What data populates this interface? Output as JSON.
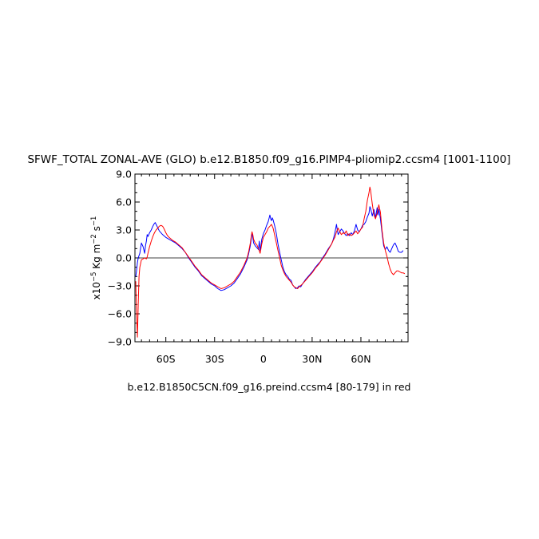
{
  "chart_data": {
    "type": "line",
    "title": "SFWF_TOTAL ZONAL-AVE (GLO) b.e12.B1850.f09_g16.PIMP4-pliomip2.ccsm4 [1001-1100]",
    "xlabel": "b.e12.B1850C5CN.f09_g16.preind.ccsm4 [80-179] in red",
    "ylabel": {
      "prefix": "x10",
      "exp": "−5",
      "units_a": " Kg m",
      "units_a_exp": "−2",
      "units_b": " s",
      "units_b_exp": "−1"
    },
    "xlim": [
      -79,
      89
    ],
    "ylim": [
      -9.0,
      9.0
    ],
    "x_ticks": [
      {
        "value": -60,
        "label": "60S"
      },
      {
        "value": -30,
        "label": "30S"
      },
      {
        "value": 0,
        "label": "0"
      },
      {
        "value": 30,
        "label": "30N"
      },
      {
        "value": 60,
        "label": "60N"
      }
    ],
    "y_ticks": [
      {
        "value": 9,
        "label": "9.0"
      },
      {
        "value": 6,
        "label": "6.0"
      },
      {
        "value": 3,
        "label": "3.0"
      },
      {
        "value": 0,
        "label": "0.0"
      },
      {
        "value": -3,
        "label": "−3.0"
      },
      {
        "value": -6,
        "label": "−6.0"
      },
      {
        "value": -9,
        "label": "−9.0"
      }
    ],
    "zero_line": true,
    "grid": false,
    "series": [
      {
        "color": "#0000ff",
        "points": [
          [
            -78.5,
            -2.0
          ],
          [
            -78.0,
            -1.4
          ],
          [
            -77.5,
            -0.5
          ],
          [
            -77.0,
            0.0
          ],
          [
            -76.0,
            0.5
          ],
          [
            -75.0,
            1.6
          ],
          [
            -74.0,
            1.2
          ],
          [
            -73.0,
            0.5
          ],
          [
            -72.5,
            1.3
          ],
          [
            -72.0,
            1.8
          ],
          [
            -71.5,
            2.5
          ],
          [
            -71.0,
            2.3
          ],
          [
            -70.0,
            2.7
          ],
          [
            -69.0,
            3.0
          ],
          [
            -68.0,
            3.4
          ],
          [
            -67.0,
            3.7
          ],
          [
            -66.5,
            3.8
          ],
          [
            -66.0,
            3.6
          ],
          [
            -64.0,
            2.9
          ],
          [
            -62.0,
            2.5
          ],
          [
            -60.0,
            2.2
          ],
          [
            -58.0,
            2.0
          ],
          [
            -56.0,
            1.8
          ],
          [
            -54.0,
            1.6
          ],
          [
            -52.0,
            1.3
          ],
          [
            -50.0,
            1.0
          ],
          [
            -48.0,
            0.6
          ],
          [
            -46.0,
            0.0
          ],
          [
            -44.0,
            -0.5
          ],
          [
            -42.0,
            -1.0
          ],
          [
            -40.0,
            -1.4
          ],
          [
            -38.0,
            -1.9
          ],
          [
            -36.0,
            -2.2
          ],
          [
            -34.0,
            -2.5
          ],
          [
            -32.0,
            -2.8
          ],
          [
            -30.0,
            -3.0
          ],
          [
            -28.0,
            -3.3
          ],
          [
            -26.0,
            -3.5
          ],
          [
            -24.0,
            -3.4
          ],
          [
            -22.0,
            -3.2
          ],
          [
            -20.0,
            -3.0
          ],
          [
            -18.0,
            -2.7
          ],
          [
            -16.0,
            -2.2
          ],
          [
            -14.0,
            -1.7
          ],
          [
            -12.0,
            -1.0
          ],
          [
            -10.0,
            -0.2
          ],
          [
            -9.0,
            0.5
          ],
          [
            -8.0,
            1.3
          ],
          [
            -7.5,
            2.0
          ],
          [
            -7.0,
            2.7
          ],
          [
            -6.5,
            2.2
          ],
          [
            -6.0,
            1.6
          ],
          [
            -5.0,
            1.3
          ],
          [
            -4.0,
            1.1
          ],
          [
            -3.0,
            0.9
          ],
          [
            -2.5,
            1.8
          ],
          [
            -2.0,
            0.8
          ],
          [
            -1.5,
            1.3
          ],
          [
            -1.0,
            2.0
          ],
          [
            0.0,
            2.6
          ],
          [
            1.0,
            3.0
          ],
          [
            2.0,
            3.5
          ],
          [
            3.0,
            3.9
          ],
          [
            4.0,
            4.6
          ],
          [
            4.5,
            4.2
          ],
          [
            5.0,
            4.0
          ],
          [
            5.5,
            4.3
          ],
          [
            6.0,
            4.1
          ],
          [
            7.0,
            3.4
          ],
          [
            8.0,
            2.6
          ],
          [
            9.0,
            1.5
          ],
          [
            10.0,
            0.6
          ],
          [
            11.0,
            -0.2
          ],
          [
            12.0,
            -1.0
          ],
          [
            13.0,
            -1.5
          ],
          [
            14.0,
            -1.8
          ],
          [
            15.0,
            -2.0
          ],
          [
            16.0,
            -2.3
          ],
          [
            17.0,
            -2.4
          ],
          [
            18.0,
            -2.9
          ],
          [
            19.0,
            -3.1
          ],
          [
            20.0,
            -3.3
          ],
          [
            21.0,
            -3.2
          ],
          [
            22.0,
            -3.0
          ],
          [
            23.0,
            -3.1
          ],
          [
            24.0,
            -2.8
          ],
          [
            26.0,
            -2.3
          ],
          [
            28.0,
            -1.9
          ],
          [
            30.0,
            -1.5
          ],
          [
            32.0,
            -1.0
          ],
          [
            34.0,
            -0.6
          ],
          [
            35.0,
            -0.4
          ],
          [
            36.0,
            -0.1
          ],
          [
            38.0,
            0.4
          ],
          [
            40.0,
            1.0
          ],
          [
            42.0,
            1.5
          ],
          [
            43.0,
            2.0
          ],
          [
            44.0,
            2.7
          ],
          [
            45.0,
            3.6
          ],
          [
            45.5,
            3.0
          ],
          [
            46.0,
            2.5
          ],
          [
            47.0,
            2.8
          ],
          [
            48.0,
            3.1
          ],
          [
            49.0,
            2.9
          ],
          [
            50.0,
            2.6
          ],
          [
            51.0,
            2.4
          ],
          [
            52.0,
            2.6
          ],
          [
            53.0,
            2.4
          ],
          [
            54.0,
            2.7
          ],
          [
            55.0,
            2.5
          ],
          [
            56.0,
            2.9
          ],
          [
            57.0,
            3.6
          ],
          [
            58.0,
            3.0
          ],
          [
            59.0,
            2.8
          ],
          [
            60.0,
            3.1
          ],
          [
            61.0,
            3.5
          ],
          [
            62.0,
            3.6
          ],
          [
            63.0,
            3.9
          ],
          [
            64.0,
            4.4
          ],
          [
            65.0,
            4.8
          ],
          [
            65.5,
            5.5
          ],
          [
            66.0,
            5.3
          ],
          [
            67.0,
            4.5
          ],
          [
            68.0,
            5.2
          ],
          [
            69.0,
            4.3
          ],
          [
            70.0,
            5.4
          ],
          [
            70.5,
            4.6
          ],
          [
            71.0,
            5.2
          ],
          [
            72.0,
            4.2
          ],
          [
            73.0,
            2.7
          ],
          [
            74.0,
            1.3
          ],
          [
            75.0,
            0.9
          ],
          [
            76.0,
            1.2
          ],
          [
            77.0,
            0.8
          ],
          [
            78.0,
            0.6
          ],
          [
            79.0,
            1.0
          ],
          [
            80.0,
            1.4
          ],
          [
            81.0,
            1.6
          ],
          [
            82.0,
            1.2
          ],
          [
            83.0,
            0.7
          ],
          [
            84.0,
            0.6
          ],
          [
            85.0,
            0.6
          ],
          [
            86.0,
            0.8
          ]
        ]
      },
      {
        "color": "#ff0000",
        "points": [
          [
            -78.5,
            -2.5
          ],
          [
            -78.0,
            -6.0
          ],
          [
            -77.5,
            -8.5
          ],
          [
            -77.0,
            -5.0
          ],
          [
            -76.5,
            -2.0
          ],
          [
            -76.0,
            -1.0
          ],
          [
            -75.5,
            -0.6
          ],
          [
            -75.0,
            -0.2
          ],
          [
            -74.0,
            -0.1
          ],
          [
            -73.0,
            0.0
          ],
          [
            -72.0,
            -0.1
          ],
          [
            -71.5,
            0.1
          ],
          [
            -71.0,
            0.5
          ],
          [
            -70.0,
            1.2
          ],
          [
            -69.0,
            1.8
          ],
          [
            -68.0,
            2.3
          ],
          [
            -67.0,
            2.7
          ],
          [
            -66.0,
            3.0
          ],
          [
            -65.0,
            3.2
          ],
          [
            -64.0,
            3.4
          ],
          [
            -63.0,
            3.5
          ],
          [
            -62.0,
            3.4
          ],
          [
            -61.0,
            3.1
          ],
          [
            -60.0,
            2.7
          ],
          [
            -59.0,
            2.4
          ],
          [
            -58.0,
            2.2
          ],
          [
            -56.0,
            1.9
          ],
          [
            -54.0,
            1.7
          ],
          [
            -52.0,
            1.4
          ],
          [
            -50.0,
            1.1
          ],
          [
            -48.0,
            0.6
          ],
          [
            -46.0,
            0.1
          ],
          [
            -44.0,
            -0.4
          ],
          [
            -42.0,
            -0.9
          ],
          [
            -40.0,
            -1.3
          ],
          [
            -38.0,
            -1.8
          ],
          [
            -36.0,
            -2.1
          ],
          [
            -34.0,
            -2.4
          ],
          [
            -32.0,
            -2.7
          ],
          [
            -30.0,
            -2.9
          ],
          [
            -28.0,
            -3.1
          ],
          [
            -26.0,
            -3.3
          ],
          [
            -24.0,
            -3.2
          ],
          [
            -22.0,
            -3.0
          ],
          [
            -20.0,
            -2.8
          ],
          [
            -18.0,
            -2.5
          ],
          [
            -16.0,
            -2.0
          ],
          [
            -14.0,
            -1.5
          ],
          [
            -12.0,
            -0.8
          ],
          [
            -10.0,
            0.0
          ],
          [
            -9.0,
            0.7
          ],
          [
            -8.0,
            1.6
          ],
          [
            -7.5,
            2.3
          ],
          [
            -7.0,
            2.8
          ],
          [
            -6.5,
            2.5
          ],
          [
            -6.0,
            2.0
          ],
          [
            -5.0,
            1.6
          ],
          [
            -4.0,
            1.4
          ],
          [
            -3.0,
            1.0
          ],
          [
            -2.0,
            0.5
          ],
          [
            -1.0,
            1.5
          ],
          [
            0.0,
            2.2
          ],
          [
            1.0,
            2.5
          ],
          [
            2.0,
            2.8
          ],
          [
            3.0,
            3.2
          ],
          [
            4.0,
            3.4
          ],
          [
            5.0,
            3.6
          ],
          [
            6.0,
            3.2
          ],
          [
            7.0,
            2.4
          ],
          [
            8.0,
            1.6
          ],
          [
            9.0,
            0.8
          ],
          [
            10.0,
            0.0
          ],
          [
            11.0,
            -0.8
          ],
          [
            12.0,
            -1.3
          ],
          [
            13.0,
            -1.7
          ],
          [
            14.0,
            -2.0
          ],
          [
            15.0,
            -2.2
          ],
          [
            16.0,
            -2.4
          ],
          [
            17.0,
            -2.6
          ],
          [
            18.0,
            -2.9
          ],
          [
            19.0,
            -3.1
          ],
          [
            20.0,
            -3.2
          ],
          [
            21.0,
            -3.3
          ],
          [
            22.0,
            -3.1
          ],
          [
            24.0,
            -2.8
          ],
          [
            26.0,
            -2.4
          ],
          [
            28.0,
            -2.0
          ],
          [
            30.0,
            -1.6
          ],
          [
            32.0,
            -1.1
          ],
          [
            34.0,
            -0.7
          ],
          [
            36.0,
            -0.2
          ],
          [
            38.0,
            0.3
          ],
          [
            40.0,
            0.9
          ],
          [
            42.0,
            1.5
          ],
          [
            43.0,
            1.9
          ],
          [
            44.0,
            2.2
          ],
          [
            45.0,
            2.8
          ],
          [
            46.0,
            3.2
          ],
          [
            47.0,
            2.8
          ],
          [
            48.0,
            2.5
          ],
          [
            49.0,
            2.7
          ],
          [
            50.0,
            2.6
          ],
          [
            51.0,
            2.9
          ],
          [
            52.0,
            2.4
          ],
          [
            53.0,
            2.6
          ],
          [
            54.0,
            2.4
          ],
          [
            55.0,
            2.5
          ],
          [
            56.0,
            2.7
          ],
          [
            57.0,
            2.9
          ],
          [
            58.0,
            2.6
          ],
          [
            59.0,
            2.8
          ],
          [
            60.0,
            3.1
          ],
          [
            61.0,
            3.3
          ],
          [
            62.0,
            4.2
          ],
          [
            63.0,
            5.0
          ],
          [
            64.0,
            6.2
          ],
          [
            65.0,
            7.0
          ],
          [
            65.5,
            7.6
          ],
          [
            66.0,
            7.2
          ],
          [
            67.0,
            5.8
          ],
          [
            68.0,
            4.6
          ],
          [
            69.0,
            4.2
          ],
          [
            70.0,
            4.8
          ],
          [
            71.0,
            5.7
          ],
          [
            72.0,
            4.9
          ],
          [
            73.0,
            3.0
          ],
          [
            74.0,
            1.6
          ],
          [
            75.0,
            0.8
          ],
          [
            76.0,
            0.2
          ],
          [
            77.0,
            -0.6
          ],
          [
            78.0,
            -1.2
          ],
          [
            79.0,
            -1.6
          ],
          [
            80.0,
            -1.8
          ],
          [
            81.0,
            -1.6
          ],
          [
            82.0,
            -1.4
          ],
          [
            83.0,
            -1.4
          ],
          [
            84.0,
            -1.5
          ],
          [
            85.0,
            -1.6
          ],
          [
            86.0,
            -1.6
          ],
          [
            87.0,
            -1.7
          ]
        ]
      }
    ]
  }
}
